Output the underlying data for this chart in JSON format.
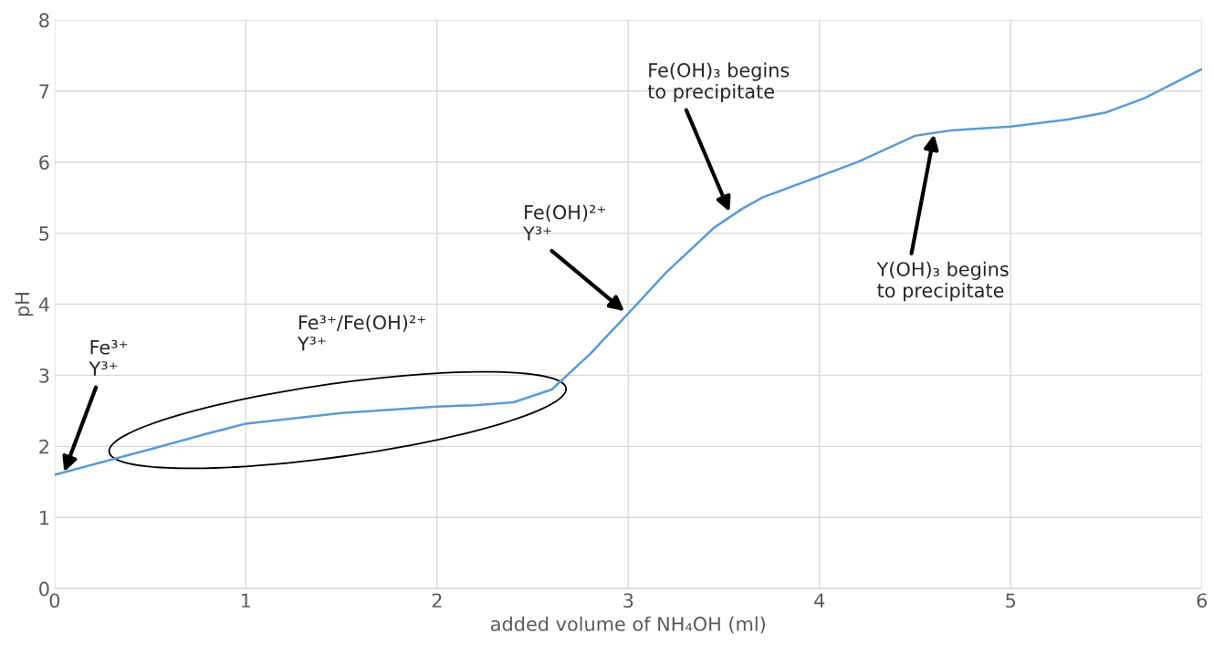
{
  "chart_data": {
    "type": "line",
    "xlabel": "added volume of NH₄OH (ml)",
    "ylabel": "pH",
    "x": [
      0,
      0.25,
      0.5,
      0.8,
      1,
      1.5,
      2,
      2.2,
      2.4,
      2.6,
      2.8,
      3,
      3.2,
      3.45,
      3.6,
      3.7,
      4,
      4.2,
      4.5,
      4.7,
      5,
      5.3,
      5.5,
      5.7,
      6
    ],
    "series": [
      {
        "color": "#5b9bd5",
        "values": [
          1.6,
          1.78,
          1.96,
          2.18,
          2.32,
          2.47,
          2.56,
          2.58,
          2.62,
          2.8,
          3.3,
          3.87,
          4.45,
          5.08,
          5.35,
          5.5,
          5.8,
          6.0,
          6.37,
          6.45,
          6.5,
          6.6,
          6.7,
          6.9,
          7.31
        ]
      }
    ],
    "xlim": [
      0,
      6
    ],
    "xticks": [
      0,
      1,
      2,
      3,
      4,
      5,
      6
    ],
    "ylim": [
      0,
      8
    ],
    "yticks": [
      0,
      1,
      2,
      3,
      4,
      5,
      6,
      7,
      8
    ],
    "grid": true,
    "marker": "none",
    "line_style": "solid",
    "annotations": [
      {
        "text": "Fe³⁺\nY³⁺",
        "x": 0.05,
        "y": 1.64
      },
      "Fe³⁺/Fe(OH)²⁺\nY³⁺",
      {
        "text": "Fe(OH)²⁺\nY³⁺",
        "x": 2.98,
        "y": 3.9
      },
      {
        "text": "Fe(OH)₃ begins\nto precipitate",
        "x": 3.53,
        "y": 5.3
      },
      {
        "text": "Y(OH)₃ begins\nto precipitate",
        "x": 4.6,
        "y": 6.39
      }
    ]
  }
}
